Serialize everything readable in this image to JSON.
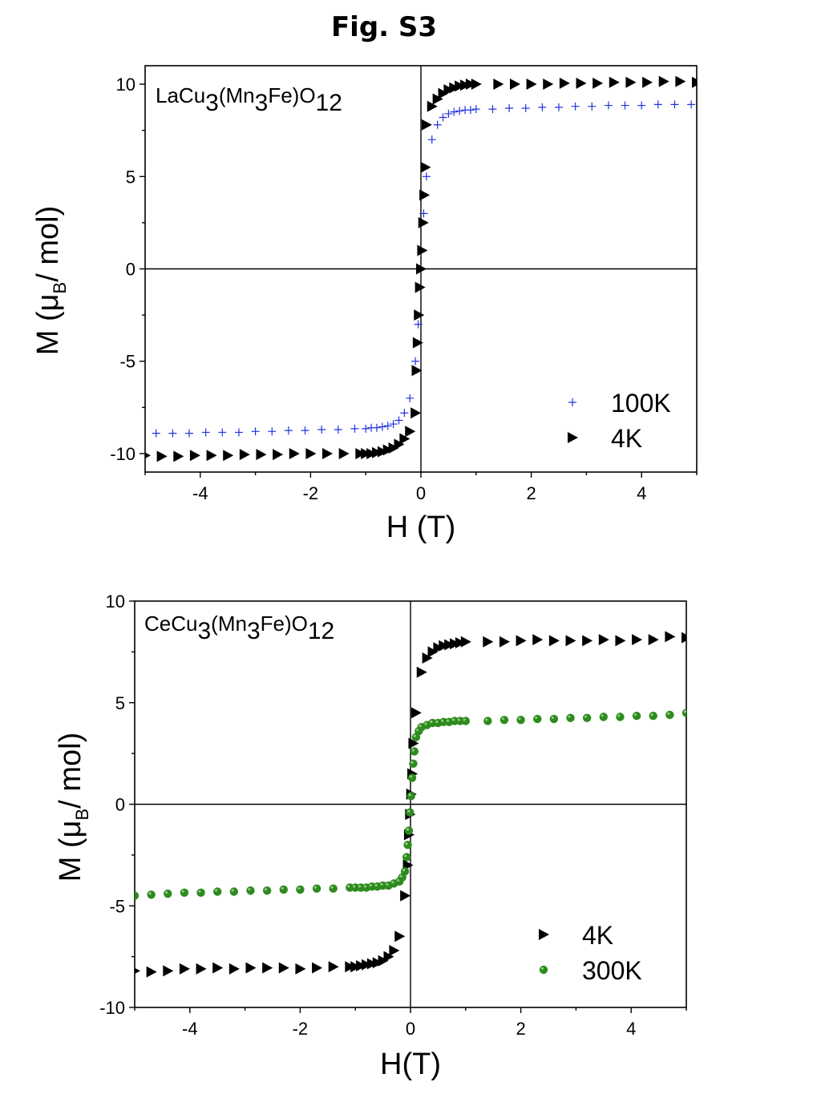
{
  "figure_title": "Fig. S3",
  "chart_data": [
    {
      "type": "scatter",
      "label_main": "LaCu",
      "label_parts": [
        "LaCu",
        "3",
        "(Mn",
        "3",
        "Fe)O",
        "12"
      ],
      "xlabel": "H (T)",
      "ylabel_parts": [
        "M (",
        "μ",
        "B",
        "/ mol)"
      ],
      "xlim": [
        -5,
        5
      ],
      "ylim": [
        -11,
        11
      ],
      "xticks": [
        -4,
        -2,
        0,
        2,
        4
      ],
      "yticks": [
        10,
        5,
        0,
        -5,
        -10
      ],
      "xtick_labels": [
        "-4",
        "-2",
        "0",
        "2",
        "4"
      ],
      "ytick_labels": [
        "10",
        "5",
        "0",
        "-5",
        "-10"
      ],
      "legend_placement": "bottom-right",
      "series": [
        {
          "name": "100K",
          "marker": "plus",
          "color": "#2233dd",
          "x": [
            -4.8,
            -4.5,
            -4.2,
            -3.9,
            -3.6,
            -3.3,
            -3.0,
            -2.7,
            -2.4,
            -2.1,
            -1.8,
            -1.5,
            -1.2,
            -1.0,
            -0.9,
            -0.8,
            -0.7,
            -0.6,
            -0.5,
            -0.4,
            -0.3,
            -0.2,
            -0.1,
            -0.05,
            0.0,
            0.05,
            0.1,
            0.2,
            0.3,
            0.4,
            0.5,
            0.6,
            0.7,
            0.8,
            0.9,
            1.0,
            1.3,
            1.6,
            1.9,
            2.2,
            2.5,
            2.8,
            3.1,
            3.4,
            3.7,
            4.0,
            4.3,
            4.6,
            4.9
          ],
          "y": [
            -8.9,
            -8.9,
            -8.9,
            -8.85,
            -8.85,
            -8.85,
            -8.8,
            -8.8,
            -8.75,
            -8.75,
            -8.7,
            -8.7,
            -8.65,
            -8.65,
            -8.6,
            -8.6,
            -8.55,
            -8.5,
            -8.4,
            -8.2,
            -7.8,
            -7.0,
            -5.0,
            -3.0,
            0.0,
            3.0,
            5.0,
            7.0,
            7.8,
            8.2,
            8.4,
            8.5,
            8.55,
            8.6,
            8.6,
            8.65,
            8.65,
            8.7,
            8.7,
            8.75,
            8.75,
            8.8,
            8.8,
            8.85,
            8.85,
            8.85,
            8.9,
            8.9,
            8.9
          ]
        },
        {
          "name": "4K",
          "marker": "triangle-right",
          "color": "#000000",
          "x": [
            -5.0,
            -4.7,
            -4.4,
            -4.1,
            -3.8,
            -3.5,
            -3.2,
            -2.9,
            -2.6,
            -2.3,
            -2.0,
            -1.7,
            -1.4,
            -1.1,
            -1.0,
            -0.9,
            -0.8,
            -0.7,
            -0.6,
            -0.5,
            -0.4,
            -0.3,
            -0.2,
            -0.1,
            -0.08,
            -0.06,
            -0.04,
            -0.02,
            0.0,
            0.02,
            0.04,
            0.06,
            0.08,
            0.1,
            0.2,
            0.3,
            0.4,
            0.5,
            0.6,
            0.7,
            0.8,
            0.9,
            1.0,
            1.4,
            1.7,
            2.0,
            2.3,
            2.6,
            2.9,
            3.2,
            3.5,
            3.8,
            4.1,
            4.4,
            4.7,
            5.0
          ],
          "y": [
            -10.1,
            -10.15,
            -10.15,
            -10.1,
            -10.1,
            -10.1,
            -10.05,
            -10.05,
            -10.05,
            -10.0,
            -10.0,
            -10.0,
            -10.0,
            -10.0,
            -10.0,
            -10.0,
            -9.95,
            -9.9,
            -9.8,
            -9.7,
            -9.5,
            -9.2,
            -8.8,
            -7.8,
            -5.5,
            -4.0,
            -2.5,
            -1.0,
            0.0,
            1.0,
            2.5,
            4.0,
            5.5,
            7.8,
            8.8,
            9.2,
            9.5,
            9.7,
            9.8,
            9.9,
            9.95,
            10.0,
            10.0,
            10.0,
            10.0,
            10.0,
            10.0,
            10.05,
            10.05,
            10.05,
            10.1,
            10.1,
            10.1,
            10.15,
            10.15,
            10.1
          ]
        }
      ]
    },
    {
      "type": "scatter",
      "label_parts": [
        "CeCu",
        "3",
        "(Mn",
        "3",
        "Fe)O",
        "12"
      ],
      "xlabel": "H(T)",
      "ylabel_parts": [
        "M (",
        "μ",
        "B",
        "/ mol)"
      ],
      "xlim": [
        -5,
        5
      ],
      "ylim": [
        -10,
        10
      ],
      "xticks": [
        -4,
        -2,
        0,
        2,
        4
      ],
      "yticks": [
        10,
        5,
        0,
        -5,
        -10
      ],
      "xtick_labels": [
        "-4",
        "-2",
        "0",
        "2",
        "4"
      ],
      "ytick_labels": [
        "10",
        "5",
        "0",
        "-5",
        "-10"
      ],
      "legend_placement": "bottom-right",
      "series": [
        {
          "name": "4K",
          "marker": "triangle-right",
          "color": "#000000",
          "x": [
            -5.0,
            -4.7,
            -4.4,
            -4.1,
            -3.8,
            -3.5,
            -3.2,
            -2.9,
            -2.6,
            -2.3,
            -2.0,
            -1.7,
            -1.4,
            -1.1,
            -1.0,
            -0.9,
            -0.8,
            -0.7,
            -0.6,
            -0.5,
            -0.4,
            -0.3,
            -0.2,
            -0.1,
            -0.05,
            -0.03,
            -0.01,
            0.01,
            0.03,
            0.05,
            0.1,
            0.2,
            0.3,
            0.4,
            0.5,
            0.6,
            0.7,
            0.8,
            0.9,
            1.0,
            1.4,
            1.7,
            2.0,
            2.3,
            2.6,
            2.9,
            3.2,
            3.5,
            3.8,
            4.1,
            4.4,
            4.7,
            5.0
          ],
          "y": [
            -8.2,
            -8.25,
            -8.2,
            -8.1,
            -8.1,
            -8.05,
            -8.1,
            -8.05,
            -8.05,
            -8.05,
            -8.1,
            -8.05,
            -8.0,
            -8.0,
            -8.0,
            -7.95,
            -7.9,
            -7.85,
            -7.8,
            -7.7,
            -7.5,
            -7.2,
            -6.5,
            -4.5,
            -3.0,
            -1.5,
            -0.5,
            0.5,
            1.5,
            3.0,
            4.5,
            6.5,
            7.2,
            7.5,
            7.7,
            7.8,
            7.85,
            7.9,
            7.95,
            8.0,
            8.0,
            8.0,
            8.05,
            8.1,
            8.05,
            8.05,
            8.05,
            8.1,
            8.05,
            8.1,
            8.1,
            8.25,
            8.2
          ]
        },
        {
          "name": "300K",
          "marker": "circle",
          "color": "#2e8b1e",
          "x": [
            -5.0,
            -4.7,
            -4.4,
            -4.1,
            -3.8,
            -3.5,
            -3.2,
            -2.9,
            -2.6,
            -2.3,
            -2.0,
            -1.7,
            -1.4,
            -1.1,
            -1.0,
            -0.9,
            -0.8,
            -0.7,
            -0.6,
            -0.5,
            -0.4,
            -0.3,
            -0.2,
            -0.15,
            -0.1,
            -0.07,
            -0.05,
            -0.03,
            -0.01,
            0.01,
            0.03,
            0.05,
            0.07,
            0.1,
            0.15,
            0.2,
            0.3,
            0.4,
            0.5,
            0.6,
            0.7,
            0.8,
            0.9,
            1.0,
            1.4,
            1.7,
            2.0,
            2.3,
            2.6,
            2.9,
            3.2,
            3.5,
            3.8,
            4.1,
            4.4,
            4.7,
            5.0
          ],
          "y": [
            -4.5,
            -4.45,
            -4.4,
            -4.35,
            -4.35,
            -4.3,
            -4.3,
            -4.25,
            -4.25,
            -4.2,
            -4.2,
            -4.15,
            -4.15,
            -4.1,
            -4.1,
            -4.1,
            -4.1,
            -4.05,
            -4.05,
            -4.0,
            -4.0,
            -3.9,
            -3.8,
            -3.6,
            -3.3,
            -2.6,
            -2.0,
            -1.3,
            -0.4,
            0.4,
            1.3,
            2.0,
            2.6,
            3.3,
            3.6,
            3.8,
            3.9,
            4.0,
            4.0,
            4.05,
            4.05,
            4.1,
            4.1,
            4.1,
            4.1,
            4.15,
            4.15,
            4.2,
            4.2,
            4.25,
            4.25,
            4.3,
            4.3,
            4.35,
            4.35,
            4.4,
            4.5
          ]
        }
      ]
    }
  ]
}
